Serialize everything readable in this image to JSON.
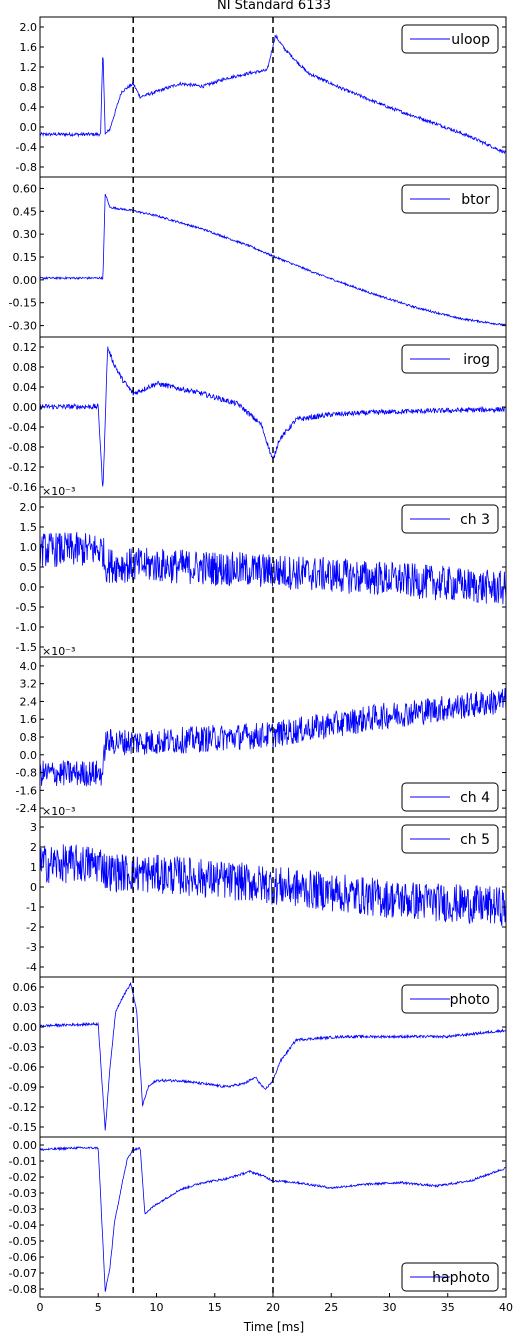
{
  "chart_data": {
    "type": "line",
    "title": "NI Standard 6133",
    "xlabel": "Time [ms]",
    "xlim": [
      0,
      40
    ],
    "xticks": [
      "0",
      "5",
      "10",
      "15",
      "20",
      "25",
      "30",
      "35",
      "40"
    ],
    "vlines": [
      8,
      20
    ],
    "series_color": "#0000ff",
    "panels": [
      {
        "name": "uloop",
        "legend_loc": "top-right",
        "ylim": [
          -0.8,
          2.2
        ],
        "exponent": "",
        "yticks": [
          "2.0",
          "1.6",
          "1.2",
          "0.8",
          "0.4",
          "0.0",
          "-0.4",
          "-0.8"
        ],
        "points": [
          [
            0,
            0
          ],
          [
            5.2,
            0
          ],
          [
            5.4,
            1.6
          ],
          [
            5.6,
            0
          ],
          [
            6,
            0.1
          ],
          [
            7,
            0.8
          ],
          [
            8,
            0.95
          ],
          [
            8.6,
            0.7
          ],
          [
            10,
            0.8
          ],
          [
            12,
            0.95
          ],
          [
            14,
            0.9
          ],
          [
            16,
            1.05
          ],
          [
            18,
            1.15
          ],
          [
            19.5,
            1.2
          ],
          [
            20.2,
            1.85
          ],
          [
            21,
            1.6
          ],
          [
            23,
            1.15
          ],
          [
            26,
            0.85
          ],
          [
            30,
            0.5
          ],
          [
            34,
            0.2
          ],
          [
            37,
            -0.05
          ],
          [
            40,
            -0.35
          ]
        ],
        "noise": 0.03
      },
      {
        "name": "btor",
        "legend_loc": "top-right",
        "ylim": [
          -0.35,
          0.6
        ],
        "exponent": "",
        "yticks": [
          "0.60",
          "0.45",
          "0.30",
          "0.15",
          "0.00",
          "-0.15",
          "-0.30"
        ],
        "points": [
          [
            0,
            0
          ],
          [
            5.4,
            0
          ],
          [
            5.6,
            0.5
          ],
          [
            6,
            0.42
          ],
          [
            8,
            0.4
          ],
          [
            10,
            0.37
          ],
          [
            14,
            0.29
          ],
          [
            18,
            0.19
          ],
          [
            20,
            0.13
          ],
          [
            24,
            0.02
          ],
          [
            28,
            -0.08
          ],
          [
            32,
            -0.17
          ],
          [
            36,
            -0.24
          ],
          [
            40,
            -0.28
          ]
        ],
        "noise": 0.006
      },
      {
        "name": "irog",
        "legend_loc": "top-right",
        "ylim": [
          -0.17,
          0.14
        ],
        "exponent": "",
        "yticks": [
          "0.12",
          "0.08",
          "0.04",
          "0.00",
          "-0.04",
          "-0.08",
          "-0.12",
          "-0.16"
        ],
        "points": [
          [
            0,
            0.005
          ],
          [
            5,
            0.005
          ],
          [
            5.4,
            -0.16
          ],
          [
            5.8,
            0.12
          ],
          [
            6.3,
            0.09
          ],
          [
            7,
            0.06
          ],
          [
            8,
            0.03
          ],
          [
            10,
            0.05
          ],
          [
            14,
            0.03
          ],
          [
            17,
            0.01
          ],
          [
            19,
            -0.03
          ],
          [
            20,
            -0.1
          ],
          [
            20.5,
            -0.06
          ],
          [
            22,
            -0.02
          ],
          [
            25,
            -0.01
          ],
          [
            30,
            -0.005
          ],
          [
            40,
            0
          ]
        ],
        "noise": 0.005
      },
      {
        "name": "ch 3",
        "legend_loc": "top-right",
        "ylim": [
          -1.75,
          2.35
        ],
        "exponent": "×10⁻³",
        "yticks": [
          "2.0",
          "1.5",
          "1.0",
          "0.5",
          "0.0",
          "-0.5",
          "-1.0",
          "-1.5"
        ],
        "points": [
          [
            0,
            1.0
          ],
          [
            5.4,
            1.0
          ],
          [
            5.6,
            0.6
          ],
          [
            10,
            0.6
          ],
          [
            20,
            0.45
          ],
          [
            30,
            0.25
          ],
          [
            40,
            0.0
          ]
        ],
        "noise": 0.45
      },
      {
        "name": "ch 4",
        "legend_loc": "bottom-right",
        "ylim": [
          -2.6,
          4.0
        ],
        "exponent": "×10⁻³",
        "yticks": [
          "4.0",
          "3.2",
          "2.4",
          "1.6",
          "0.8",
          "0.0",
          "-0.8",
          "-1.6",
          "-2.4"
        ],
        "points": [
          [
            0,
            -0.8
          ],
          [
            5.4,
            -0.8
          ],
          [
            5.6,
            0.5
          ],
          [
            10,
            0.5
          ],
          [
            20,
            0.8
          ],
          [
            30,
            1.6
          ],
          [
            40,
            2.2
          ]
        ],
        "noise": 0.55
      },
      {
        "name": "ch 5",
        "legend_loc": "top-right",
        "ylim": [
          -4.6,
          3.6
        ],
        "exponent": "×10⁻³",
        "yticks": [
          "3",
          "2",
          "1",
          "0",
          "-1",
          "-2",
          "-3",
          "-4"
        ],
        "points": [
          [
            0,
            1.2
          ],
          [
            5.4,
            1.2
          ],
          [
            5.6,
            0.8
          ],
          [
            12,
            0.6
          ],
          [
            20,
            0.1
          ],
          [
            30,
            -0.6
          ],
          [
            40,
            -1.0
          ]
        ],
        "noise": 1.0
      },
      {
        "name": "photo",
        "legend_loc": "top-right",
        "ylim": [
          -0.18,
          0.075
        ],
        "exponent": "",
        "yticks": [
          "0.06",
          "0.03",
          "0.00",
          "-0.03",
          "-0.06",
          "-0.09",
          "-0.12",
          "-0.15"
        ],
        "points": [
          [
            0,
            -0.003
          ],
          [
            4.5,
            0
          ],
          [
            5,
            0
          ],
          [
            5.6,
            -0.17
          ],
          [
            6,
            -0.07
          ],
          [
            6.5,
            0.02
          ],
          [
            7,
            0.04
          ],
          [
            7.8,
            0.065
          ],
          [
            8.3,
            0.02
          ],
          [
            8.8,
            -0.13
          ],
          [
            9.3,
            -0.1
          ],
          [
            10,
            -0.09
          ],
          [
            12,
            -0.09
          ],
          [
            14,
            -0.095
          ],
          [
            16,
            -0.1
          ],
          [
            17.5,
            -0.095
          ],
          [
            18.5,
            -0.085
          ],
          [
            19.3,
            -0.105
          ],
          [
            20,
            -0.09
          ],
          [
            20.6,
            -0.06
          ],
          [
            22,
            -0.025
          ],
          [
            26,
            -0.02
          ],
          [
            30,
            -0.02
          ],
          [
            35,
            -0.02
          ],
          [
            40,
            -0.01
          ]
        ],
        "noise": 0.002
      },
      {
        "name": "haphoto",
        "legend_loc": "bottom-right",
        "ylim": [
          -0.081,
          0.007
        ],
        "exponent": "",
        "yticks": [
          "0.00",
          "-0.01",
          "-0.02",
          "-0.03",
          "-0.03",
          "-0.04",
          "-0.05",
          "-0.06",
          "-0.07",
          "-0.08"
        ],
        "points": [
          [
            0,
            0
          ],
          [
            3,
            0.001
          ],
          [
            5,
            0.001
          ],
          [
            5.6,
            -0.078
          ],
          [
            6,
            -0.065
          ],
          [
            6.4,
            -0.04
          ],
          [
            7,
            -0.02
          ],
          [
            7.5,
            -0.005
          ],
          [
            8,
            0.0
          ],
          [
            8.6,
            0.001
          ],
          [
            9,
            -0.035
          ],
          [
            10,
            -0.03
          ],
          [
            12,
            -0.022
          ],
          [
            14,
            -0.018
          ],
          [
            16,
            -0.016
          ],
          [
            18,
            -0.012
          ],
          [
            19,
            -0.014
          ],
          [
            20,
            -0.017
          ],
          [
            22,
            -0.018
          ],
          [
            25,
            -0.021
          ],
          [
            28,
            -0.019
          ],
          [
            31,
            -0.018
          ],
          [
            34,
            -0.02
          ],
          [
            37,
            -0.017
          ],
          [
            40,
            -0.01
          ]
        ],
        "noise": 0.0006
      }
    ]
  }
}
